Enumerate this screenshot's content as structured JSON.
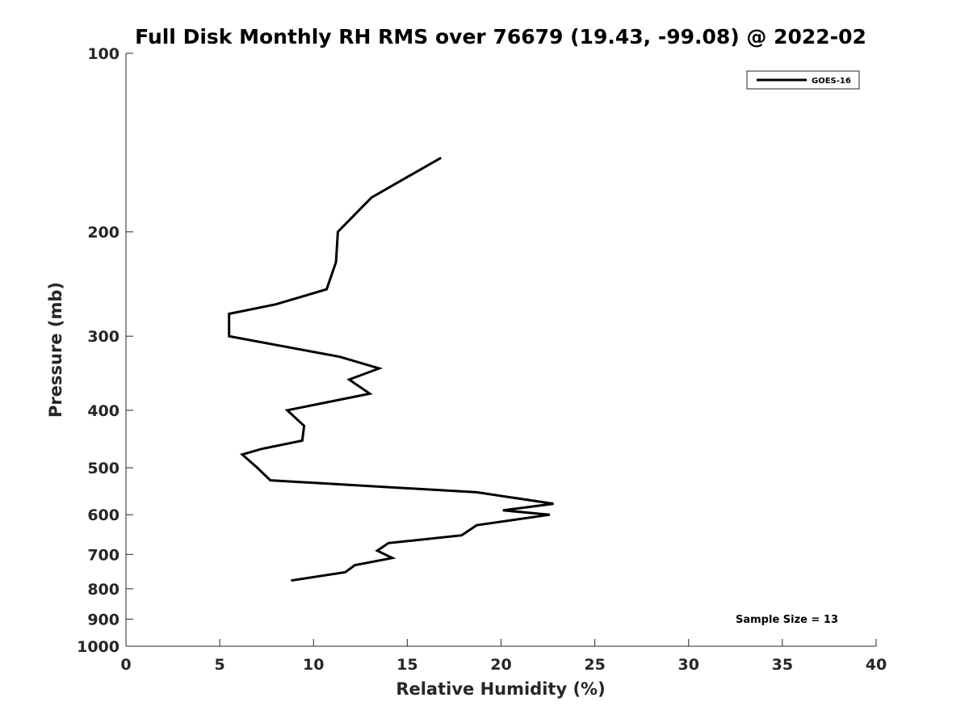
{
  "chart_data": {
    "type": "line",
    "title": "Full Disk Monthly RH RMS over 76679 (19.43, -99.08) @ 2022-02",
    "xlabel": "Relative Humidity (%)",
    "ylabel": "Pressure (mb)",
    "xlim": [
      0,
      40
    ],
    "ylim": [
      100,
      1000
    ],
    "y_scale": "log",
    "y_reversed": true,
    "grid": false,
    "x_ticks": [
      0,
      5,
      10,
      15,
      20,
      25,
      30,
      35,
      40
    ],
    "x_tick_labels": [
      "0",
      "5",
      "10",
      "15",
      "20",
      "25",
      "30",
      "35",
      "40"
    ],
    "y_ticks": [
      100,
      200,
      300,
      400,
      500,
      600,
      700,
      800,
      900,
      1000
    ],
    "y_tick_labels": [
      "100",
      "200",
      "300",
      "400",
      "500",
      "600",
      "700",
      "800",
      "900",
      "1000"
    ],
    "legend_position": "top-right",
    "series": [
      {
        "name": "GOES-16",
        "color": "#000000",
        "points": [
          {
            "x": 16.8,
            "p": 150
          },
          {
            "x": 13.1,
            "p": 175
          },
          {
            "x": 11.3,
            "p": 200
          },
          {
            "x": 11.2,
            "p": 225
          },
          {
            "x": 10.7,
            "p": 250
          },
          {
            "x": 8.0,
            "p": 265
          },
          {
            "x": 5.5,
            "p": 275
          },
          {
            "x": 5.5,
            "p": 300
          },
          {
            "x": 11.4,
            "p": 325
          },
          {
            "x": 13.5,
            "p": 340
          },
          {
            "x": 11.9,
            "p": 355
          },
          {
            "x": 13.0,
            "p": 375
          },
          {
            "x": 8.6,
            "p": 400
          },
          {
            "x": 9.5,
            "p": 425
          },
          {
            "x": 9.4,
            "p": 450
          },
          {
            "x": 7.2,
            "p": 465
          },
          {
            "x": 6.2,
            "p": 475
          },
          {
            "x": 7.0,
            "p": 500
          },
          {
            "x": 7.7,
            "p": 525
          },
          {
            "x": 18.7,
            "p": 550
          },
          {
            "x": 22.8,
            "p": 575
          },
          {
            "x": 20.1,
            "p": 590
          },
          {
            "x": 22.6,
            "p": 600
          },
          {
            "x": 18.7,
            "p": 625
          },
          {
            "x": 17.9,
            "p": 650
          },
          {
            "x": 14.0,
            "p": 670
          },
          {
            "x": 13.4,
            "p": 690
          },
          {
            "x": 14.2,
            "p": 710
          },
          {
            "x": 12.2,
            "p": 730
          },
          {
            "x": 11.7,
            "p": 750
          },
          {
            "x": 8.8,
            "p": 775
          }
        ]
      }
    ],
    "annotations": [
      {
        "text": "Sample Size = 13",
        "position": "bottom-right"
      }
    ]
  }
}
